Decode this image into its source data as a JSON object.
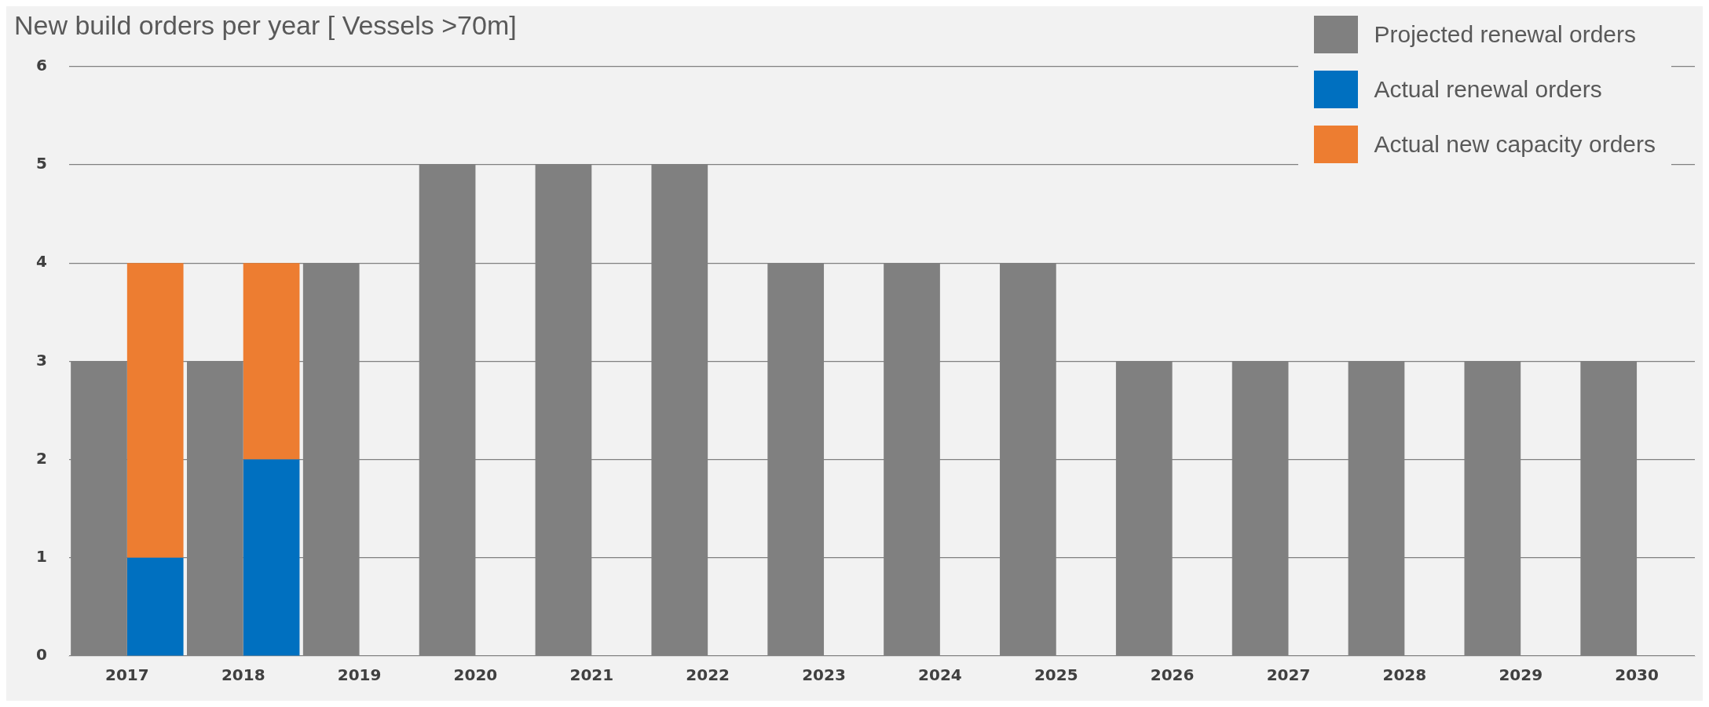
{
  "chart_data": {
    "type": "bar",
    "title": "New build orders per year [ Vessels >70m]",
    "categories": [
      "2017",
      "2018",
      "2019",
      "2020",
      "2021",
      "2022",
      "2023",
      "2024",
      "2025",
      "2026",
      "2027",
      "2028",
      "2029",
      "2030"
    ],
    "series": [
      {
        "name": "Projected renewal orders",
        "color": "#808080",
        "values": [
          3,
          3,
          4,
          5,
          5,
          5,
          4,
          4,
          4,
          3,
          3,
          3,
          3,
          3
        ]
      },
      {
        "name": "Actual renewal orders",
        "color": "#0070c0",
        "values": [
          1,
          2,
          null,
          null,
          null,
          null,
          null,
          null,
          null,
          null,
          null,
          null,
          null,
          null
        ]
      },
      {
        "name": "Actual new capacity orders",
        "color": "#ed7d31",
        "base": [
          1,
          2,
          null,
          null,
          null,
          null,
          null,
          null,
          null,
          null,
          null,
          null,
          null,
          null
        ],
        "values": [
          3,
          2,
          null,
          null,
          null,
          null,
          null,
          null,
          null,
          null,
          null,
          null,
          null,
          null
        ]
      }
    ],
    "ylim": [
      0,
      6
    ],
    "yticks": [
      0,
      1,
      2,
      3,
      4,
      5,
      6
    ],
    "grid": "y",
    "legend": "top right"
  }
}
